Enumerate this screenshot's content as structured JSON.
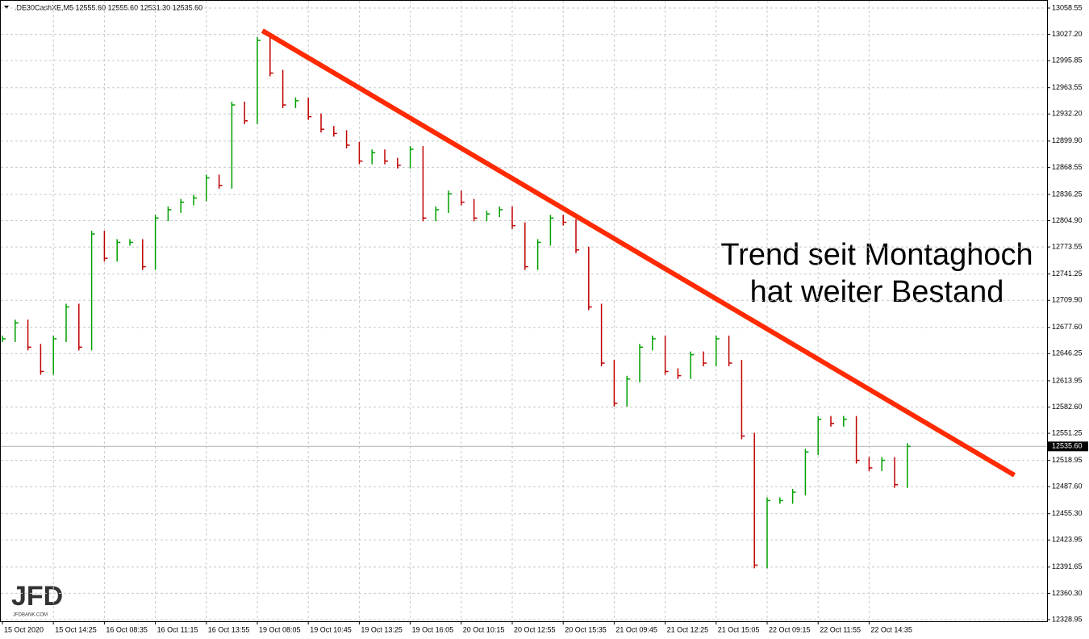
{
  "chart_data": {
    "type": "price-bars",
    "title": ".DE30CashXE,M5  12555.60 12555.60 12531.30 12535.60",
    "time_labels": [
      "15 Oct 2020",
      "15 Oct 14:25",
      "16 Oct 08:35",
      "16 Oct 11:15",
      "16 Oct 13:55",
      "19 Oct 08:05",
      "19 Oct 10:45",
      "19 Oct 13:25",
      "19 Oct 16:05",
      "20 Oct 10:15",
      "20 Oct 12:55",
      "20 Oct 15:35",
      "21 Oct 09:45",
      "21 Oct 12:25",
      "21 Oct 15:05",
      "22 Oct 09:15",
      "22 Oct 11:55",
      "22 Oct 14:35"
    ],
    "close": [
      12664,
      12683,
      12654,
      12625,
      12664,
      12702,
      12654,
      12789,
      12760,
      12779,
      12779,
      12750,
      12808,
      12818,
      12827,
      12832,
      12856,
      12847,
      12943,
      12924,
      13020,
      12981,
      12943,
      12948,
      12929,
      12914,
      12909,
      12895,
      12876,
      12886,
      12876,
      12871,
      12890,
      12808,
      12818,
      12837,
      12827,
      12808,
      12813,
      12818,
      12799,
      12750,
      12779,
      12808,
      12803,
      12770,
      12702,
      12635,
      12587,
      12616,
      12654,
      12664,
      12625,
      12620,
      12645,
      12635,
      12664,
      12635,
      12548,
      12394,
      12471,
      12471,
      12481,
      12529,
      12568,
      12563,
      12568,
      12519,
      12510,
      12519,
      12490,
      12535.6
    ],
    "up_color": "#00a000",
    "down_color": "#c00000",
    "ylim": [
      12328.95,
      13058.55
    ],
    "yticks": [
      13058.55,
      {
        "value": 13027.2,
        "label": "13027.20"
      },
      12995.85,
      12963.55,
      {
        "value": 12932.2,
        "label": "12932.20"
      },
      {
        "value": 12899.9,
        "label": "12899.90"
      },
      12868.55,
      12836.25,
      {
        "value": 12804.9,
        "label": "12804.90"
      },
      12773.55,
      12741.25,
      {
        "value": 12709.9,
        "label": "12709.90"
      },
      {
        "value": 12677.6,
        "label": "12677.60"
      },
      12646.25,
      12613.95,
      {
        "value": 12582.6,
        "label": "12582.60"
      },
      12551.25,
      12518.95,
      {
        "value": 12487.6,
        "label": "12487.60"
      },
      {
        "value": 12455.3,
        "label": "12455.30"
      },
      12423.95,
      12391.65,
      {
        "value": 12360.3,
        "label": "12360.30"
      },
      12328.95
    ],
    "current_price": {
      "value": 12535.6,
      "label": "12535.60"
    },
    "grid": true,
    "trendline": {
      "x": [
        20.4,
        79.4
      ],
      "y": [
        13031.6,
        12501.3
      ],
      "color": "#ff2a00"
    },
    "annotation": [
      "Trend seit Montaghoch",
      "hat weiter Bestand"
    ],
    "logo": {
      "text": "JFD",
      "subtext": "JFDBANK.COM"
    }
  }
}
